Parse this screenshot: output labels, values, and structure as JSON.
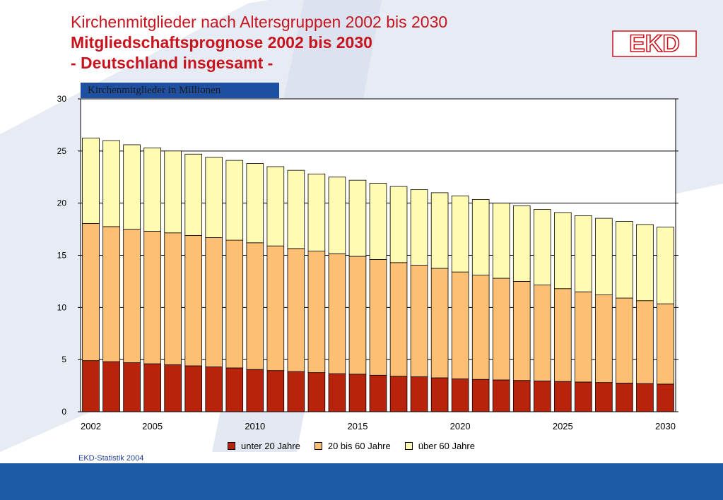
{
  "header": {
    "title_line1": "Kirchenmitglieder nach Altersgruppen 2002 bis 2030",
    "title_line2": "Mitgliedschaftsprognose 2002 bis 2030",
    "title_line3": "- Deutschland insgesamt -",
    "logo_text": "EKD"
  },
  "chart_data": {
    "type": "bar",
    "stacked": true,
    "ylabel": "Kirchenmitglieder in Millionen",
    "ylim": [
      0,
      30
    ],
    "yticks": [
      0,
      5,
      10,
      15,
      20,
      25,
      30
    ],
    "xtick_labels": [
      "2002",
      "2005",
      "2010",
      "2015",
      "2020",
      "2025",
      "2030"
    ],
    "grid": true,
    "categories": [
      "2002",
      "2003",
      "2004",
      "2005",
      "2006",
      "2007",
      "2008",
      "2009",
      "2010",
      "2011",
      "2012",
      "2013",
      "2014",
      "2015",
      "2016",
      "2017",
      "2018",
      "2019",
      "2020",
      "2021",
      "2022",
      "2023",
      "2024",
      "2025",
      "2026",
      "2027",
      "2028",
      "2029",
      "2030"
    ],
    "series": [
      {
        "name": "unter 20 Jahre",
        "color": "#b8230b",
        "values": [
          4.9,
          4.8,
          4.7,
          4.6,
          4.5,
          4.4,
          4.3,
          4.2,
          4.05,
          3.95,
          3.85,
          3.75,
          3.65,
          3.6,
          3.5,
          3.4,
          3.35,
          3.25,
          3.15,
          3.1,
          3.05,
          3.0,
          2.95,
          2.9,
          2.85,
          2.8,
          2.75,
          2.7,
          2.65
        ]
      },
      {
        "name": "20 bis 60 Jahre",
        "color": "#fcbf73",
        "values": [
          13.15,
          12.95,
          12.8,
          12.7,
          12.65,
          12.5,
          12.4,
          12.25,
          12.15,
          11.95,
          11.8,
          11.65,
          11.5,
          11.3,
          11.1,
          10.9,
          10.7,
          10.5,
          10.25,
          10.0,
          9.75,
          9.5,
          9.2,
          8.9,
          8.65,
          8.4,
          8.15,
          7.95,
          7.7
        ]
      },
      {
        "name": "über 60 Jahre",
        "color": "#fffbb3",
        "values": [
          8.2,
          8.25,
          8.1,
          8.0,
          7.85,
          7.8,
          7.7,
          7.65,
          7.6,
          7.6,
          7.5,
          7.4,
          7.35,
          7.3,
          7.3,
          7.3,
          7.25,
          7.25,
          7.3,
          7.25,
          7.2,
          7.25,
          7.25,
          7.3,
          7.3,
          7.35,
          7.35,
          7.3,
          7.35
        ]
      }
    ]
  },
  "legend": {
    "items": [
      {
        "label": "unter 20 Jahre",
        "color": "#b8230b"
      },
      {
        "label": "20 bis 60 Jahre",
        "color": "#fcbf73"
      },
      {
        "label": "über 60 Jahre",
        "color": "#fffbb3"
      }
    ]
  },
  "source": "EKD-Statistik 2004",
  "colors": {
    "title": "#c8141e",
    "footer": "#1e5ba6",
    "background_shape": "#e6ebf4"
  }
}
